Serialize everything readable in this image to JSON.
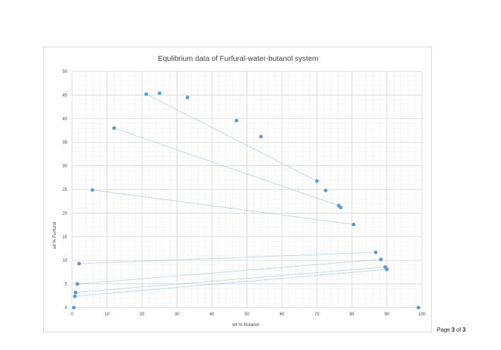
{
  "footer": {
    "page_prefix": "Page ",
    "page_current": "3",
    "page_of": " of ",
    "page_total": "3"
  },
  "chart_data": {
    "type": "scatter",
    "title": "Equlibrium data of Furfural-water-butanol system",
    "xlabel": "wt % Butanol",
    "ylabel": "wt % Furfural",
    "xlim": [
      0,
      100
    ],
    "ylim": [
      0,
      50
    ],
    "xticks": [
      0,
      10,
      20,
      30,
      40,
      50,
      60,
      70,
      80,
      90,
      100
    ],
    "yticks": [
      0,
      5,
      10,
      15,
      20,
      25,
      30,
      35,
      40,
      45,
      50
    ],
    "grid": true,
    "minor_grid": true,
    "marker_color": "#5b9bd5",
    "line_color": "#5b9bd5",
    "line_style": "dotted",
    "points": [
      {
        "x": 0.5,
        "y": 0
      },
      {
        "x": 99,
        "y": 0
      },
      {
        "x": 0.8,
        "y": 2.4
      },
      {
        "x": 1.0,
        "y": 3.2
      },
      {
        "x": 1.5,
        "y": 5.0
      },
      {
        "x": 2.0,
        "y": 9.3
      },
      {
        "x": 5.8,
        "y": 24.9
      },
      {
        "x": 12.0,
        "y": 38.0
      },
      {
        "x": 21.2,
        "y": 45.2
      },
      {
        "x": 25.0,
        "y": 45.4
      },
      {
        "x": 33.0,
        "y": 44.5
      },
      {
        "x": 47.0,
        "y": 39.6
      },
      {
        "x": 54.0,
        "y": 36.2
      },
      {
        "x": 70.0,
        "y": 26.8
      },
      {
        "x": 72.5,
        "y": 24.8
      },
      {
        "x": 76.2,
        "y": 21.6
      },
      {
        "x": 76.8,
        "y": 21.2
      },
      {
        "x": 80.5,
        "y": 17.6
      },
      {
        "x": 86.8,
        "y": 11.7
      },
      {
        "x": 88.3,
        "y": 10.2
      },
      {
        "x": 89.5,
        "y": 8.6
      },
      {
        "x": 90.0,
        "y": 8.1
      }
    ],
    "tie_lines": [
      {
        "x1": 21.2,
        "y1": 45.2,
        "x2": 70.0,
        "y2": 26.8
      },
      {
        "x1": 12.0,
        "y1": 38.0,
        "x2": 76.2,
        "y2": 21.6
      },
      {
        "x1": 5.8,
        "y1": 24.9,
        "x2": 80.5,
        "y2": 17.6
      },
      {
        "x1": 2.0,
        "y1": 9.3,
        "x2": 86.8,
        "y2": 11.7
      },
      {
        "x1": 1.5,
        "y1": 5.0,
        "x2": 88.3,
        "y2": 10.2
      },
      {
        "x1": 1.0,
        "y1": 3.2,
        "x2": 89.5,
        "y2": 8.6
      },
      {
        "x1": 0.8,
        "y1": 2.4,
        "x2": 90.0,
        "y2": 8.1
      }
    ]
  }
}
